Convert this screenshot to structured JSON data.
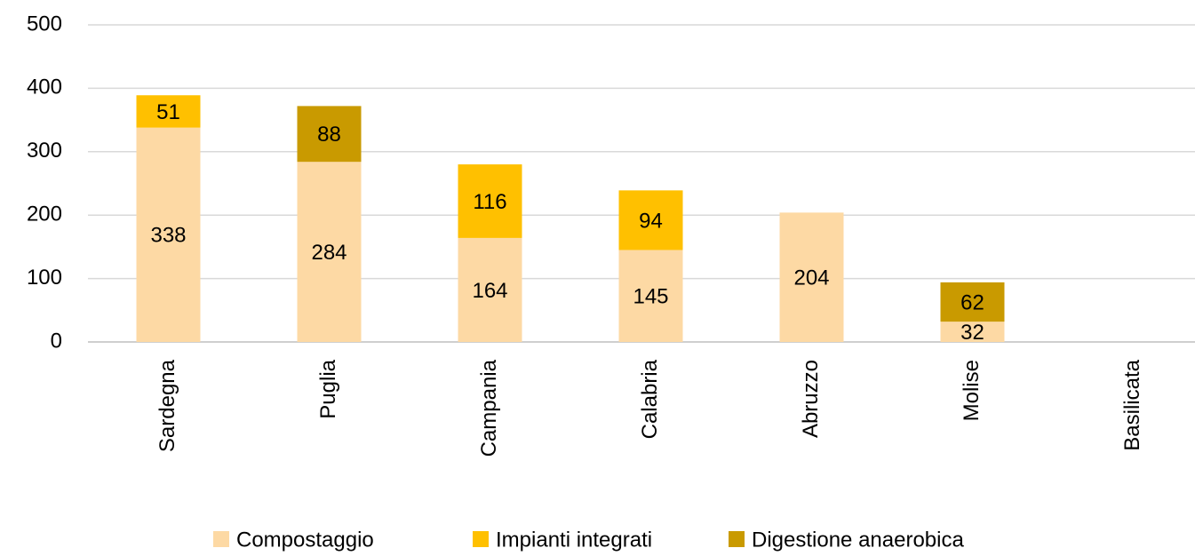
{
  "chart_data": {
    "type": "stacked_bar",
    "categories": [
      "Sardegna",
      "Puglia",
      "Campania",
      "Calabria",
      "Abruzzo",
      "Molise",
      "Basilicata"
    ],
    "series": [
      {
        "name": "Compostaggio",
        "color": "#fdd9a4",
        "values": [
          338,
          284,
          164,
          145,
          204,
          32,
          null
        ]
      },
      {
        "name": "Impianti integrati",
        "color": "#ffc000",
        "values": [
          51,
          null,
          116,
          94,
          null,
          null,
          null
        ]
      },
      {
        "name": "Digestione anaerobica",
        "color": "#c99a00",
        "values": [
          null,
          88,
          null,
          null,
          null,
          62,
          null
        ]
      }
    ],
    "ylim": [
      0,
      500
    ],
    "yticks": [
      0,
      100,
      200,
      300,
      400,
      500
    ],
    "grid": true,
    "legend": "bottom"
  }
}
